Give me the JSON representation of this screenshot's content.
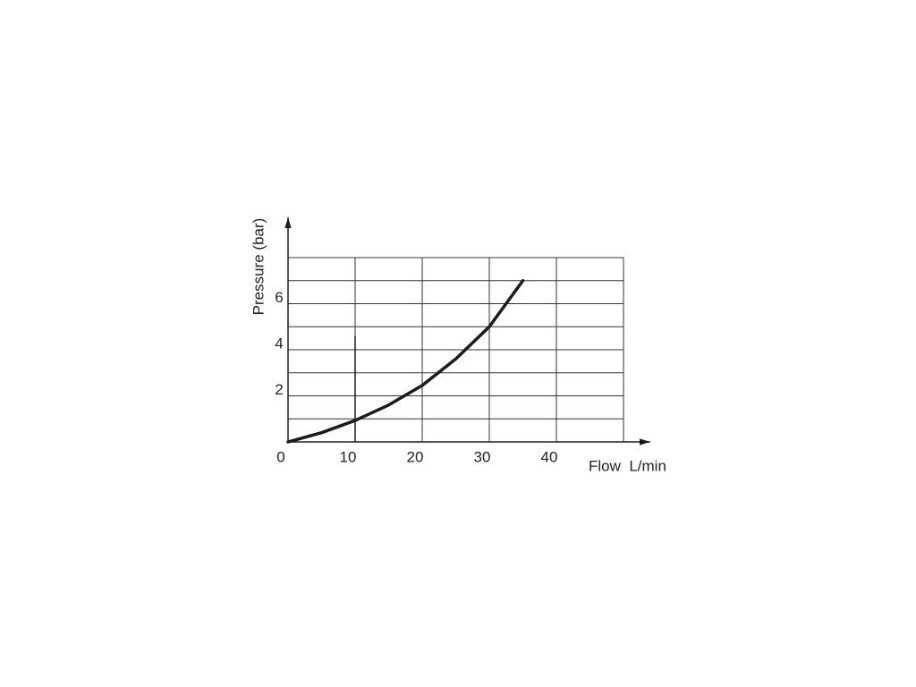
{
  "chart_data": {
    "type": "line",
    "x_label": "Flow  L/min",
    "y_label": "Pressure (bar)",
    "x": [
      0,
      5,
      10,
      15,
      20,
      25,
      30,
      35
    ],
    "series": [
      {
        "color": "#1a1a1a",
        "values": [
          0,
          0.4,
          0.93,
          1.6,
          2.45,
          3.6,
          5.0,
          7.0
        ]
      }
    ],
    "xlim": [
      0,
      50
    ],
    "ylim": [
      0,
      8
    ],
    "xticks": [
      0,
      10,
      20,
      30,
      40
    ],
    "yticks": [
      2,
      4,
      6
    ],
    "xgrid": [
      10,
      20,
      30,
      40,
      50
    ],
    "ygrid": [
      1,
      2,
      3,
      4,
      5,
      6,
      7,
      8
    ],
    "marker": {
      "x": 10,
      "y": 4.6
    }
  }
}
